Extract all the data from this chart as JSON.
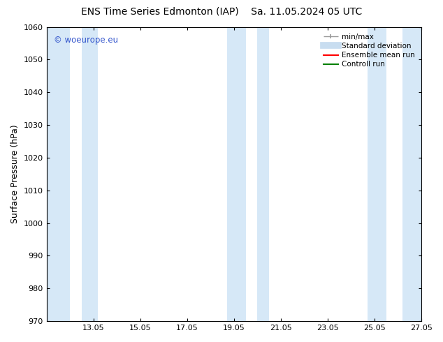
{
  "title_left": "ENS Time Series Edmonton (IAP)",
  "title_right": "Sa. 11.05.2024 05 UTC",
  "ylabel": "Surface Pressure (hPa)",
  "ylim": [
    970,
    1060
  ],
  "yticks": [
    970,
    980,
    990,
    1000,
    1010,
    1020,
    1030,
    1040,
    1050,
    1060
  ],
  "xtick_labels": [
    "13.05",
    "15.05",
    "17.05",
    "19.05",
    "21.05",
    "23.05",
    "25.05",
    "27.05"
  ],
  "xtick_positions": [
    2,
    4,
    6,
    8,
    10,
    12,
    14,
    16
  ],
  "xlim": [
    0,
    16
  ],
  "shaded_bands": [
    {
      "x_start": 0.0,
      "x_end": 1.0
    },
    {
      "x_start": 1.5,
      "x_end": 2.2
    },
    {
      "x_start": 7.7,
      "x_end": 8.5
    },
    {
      "x_start": 9.0,
      "x_end": 9.5
    },
    {
      "x_start": 13.7,
      "x_end": 14.5
    },
    {
      "x_start": 15.2,
      "x_end": 16.0
    }
  ],
  "shade_color": "#d6e8f7",
  "watermark_text": "© woeurope.eu",
  "watermark_color": "#3355cc",
  "legend_items": [
    {
      "label": "min/max",
      "color": "#999999",
      "lw": 1.0
    },
    {
      "label": "Standard deviation",
      "color": "#c8ddf0",
      "lw": 7
    },
    {
      "label": "Ensemble mean run",
      "color": "#ff0000",
      "lw": 1.5
    },
    {
      "label": "Controll run",
      "color": "#008000",
      "lw": 1.5
    }
  ],
  "bg_color": "#ffffff",
  "tick_fontsize": 8,
  "title_fontsize": 10,
  "ylabel_fontsize": 9,
  "spine_color": "#000000",
  "tick_color": "#000000"
}
